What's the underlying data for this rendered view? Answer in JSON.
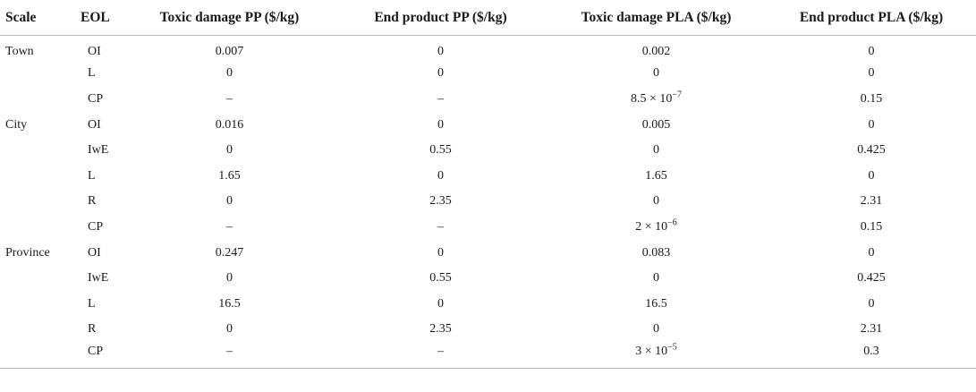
{
  "table": {
    "headers": [
      "Scale",
      "EOL",
      "Toxic damage PP ($/kg)",
      "End product PP ($/kg)",
      "Toxic damage PLA ($/kg)",
      "End product PLA ($/kg)"
    ],
    "rows": [
      {
        "scale": "Town",
        "eol": "OI",
        "tdpp": "0.007",
        "eppp": "0",
        "tdpla": "0.002",
        "eppla": "0"
      },
      {
        "scale": "",
        "eol": "L",
        "tdpp": "0",
        "eppp": "0",
        "tdpla": "0",
        "eppla": "0"
      },
      {
        "scale": "",
        "eol": "CP",
        "tdpp": "–",
        "eppp": "–",
        "tdpla_base": "8.5 × 10",
        "tdpla_exp": "−7",
        "eppla": "0.15"
      },
      {
        "scale": "City",
        "eol": "OI",
        "tdpp": "0.016",
        "eppp": "0",
        "tdpla": "0.005",
        "eppla": "0"
      },
      {
        "scale": "",
        "eol": "IwE",
        "tdpp": "0",
        "eppp": "0.55",
        "tdpla": "0",
        "eppla": "0.425"
      },
      {
        "scale": "",
        "eol": "L",
        "tdpp": "1.65",
        "eppp": "0",
        "tdpla": "1.65",
        "eppla": "0"
      },
      {
        "scale": "",
        "eol": "R",
        "tdpp": "0",
        "eppp": "2.35",
        "tdpla": "0",
        "eppla": "2.31"
      },
      {
        "scale": "",
        "eol": "CP",
        "tdpp": "–",
        "eppp": "–",
        "tdpla_base": "2 × 10",
        "tdpla_exp": "−6",
        "eppla": "0.15"
      },
      {
        "scale": "Province",
        "eol": "OI",
        "tdpp": "0.247",
        "eppp": "0",
        "tdpla": "0.083",
        "eppla": "0"
      },
      {
        "scale": "",
        "eol": "IwE",
        "tdpp": "0",
        "eppp": "0.55",
        "tdpla": "0",
        "eppla": "0.425"
      },
      {
        "scale": "",
        "eol": "L",
        "tdpp": "16.5",
        "eppp": "0",
        "tdpla": "16.5",
        "eppla": "0"
      },
      {
        "scale": "",
        "eol": "R",
        "tdpp": "0",
        "eppp": "2.35",
        "tdpla": "0",
        "eppla": "2.31"
      },
      {
        "scale": "",
        "eol": "CP",
        "tdpp": "–",
        "eppp": "–",
        "tdpla_base": "3 × 10",
        "tdpla_exp": "−5",
        "eppla": "0.3"
      }
    ]
  }
}
